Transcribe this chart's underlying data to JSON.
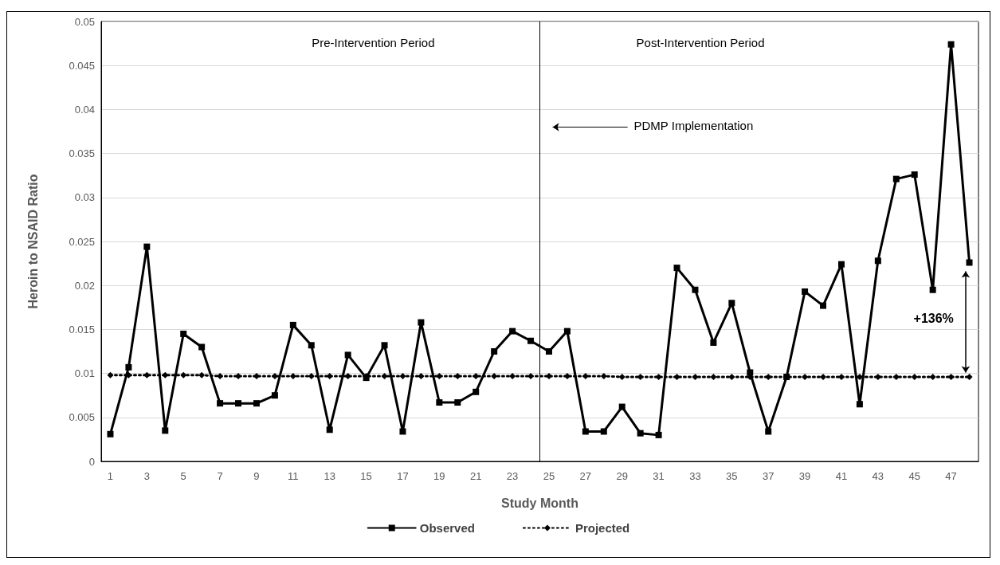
{
  "chart_data": {
    "type": "line",
    "xlabel": "Study Month",
    "ylabel": "Heroin to NSAID Ratio",
    "x": [
      1,
      2,
      3,
      4,
      5,
      6,
      7,
      8,
      9,
      10,
      11,
      12,
      13,
      14,
      15,
      16,
      17,
      18,
      19,
      20,
      21,
      22,
      23,
      24,
      25,
      26,
      27,
      28,
      29,
      30,
      31,
      32,
      33,
      34,
      35,
      36,
      37,
      38,
      39,
      40,
      41,
      42,
      43,
      44,
      45,
      46,
      47,
      48
    ],
    "series": [
      {
        "name": "Observed",
        "color": "#000000",
        "marker": "square",
        "line_style": "solid",
        "values": [
          0.0031,
          0.0107,
          0.0244,
          0.0035,
          0.0145,
          0.013,
          0.0066,
          0.0066,
          0.0066,
          0.0075,
          0.0155,
          0.0132,
          0.0036,
          0.0121,
          0.0095,
          0.0132,
          0.0034,
          0.0158,
          0.0067,
          0.0067,
          0.0079,
          0.0125,
          0.0148,
          0.0137,
          0.0125,
          0.0148,
          0.0034,
          0.0034,
          0.0062,
          0.0032,
          0.003,
          0.022,
          0.0195,
          0.0135,
          0.018,
          0.0101,
          0.0034,
          0.0096,
          0.0193,
          0.0177,
          0.0224,
          0.0065,
          0.0228,
          0.0321,
          0.0326,
          0.0195,
          0.0474,
          0.0226
        ]
      },
      {
        "name": "Projected",
        "color": "#000000",
        "marker": "diamond",
        "line_style": "dotted",
        "values": [
          0.0098,
          0.0098,
          0.0098,
          0.0098,
          0.0098,
          0.0098,
          0.0097,
          0.0097,
          0.0097,
          0.0097,
          0.0097,
          0.0097,
          0.0097,
          0.0097,
          0.0097,
          0.0097,
          0.0097,
          0.0097,
          0.0097,
          0.0097,
          0.0097,
          0.0097,
          0.0097,
          0.0097,
          0.0097,
          0.0097,
          0.0097,
          0.0097,
          0.0096,
          0.0096,
          0.0096,
          0.0096,
          0.0096,
          0.0096,
          0.0096,
          0.0096,
          0.0096,
          0.0096,
          0.0096,
          0.0096,
          0.0096,
          0.0096,
          0.0096,
          0.0096,
          0.0096,
          0.0096,
          0.0096,
          0.0096
        ]
      }
    ],
    "xlim": [
      0.5,
      48.5
    ],
    "xticks": [
      1,
      3,
      5,
      7,
      9,
      11,
      13,
      15,
      17,
      19,
      21,
      23,
      25,
      27,
      29,
      31,
      33,
      35,
      37,
      39,
      41,
      43,
      45,
      47
    ],
    "ylim": [
      0,
      0.05
    ],
    "yticks": [
      0,
      0.005,
      0.01,
      0.015,
      0.02,
      0.025,
      0.03,
      0.035,
      0.04,
      0.045,
      0.05
    ],
    "ref_lines": [
      {
        "axis": "x",
        "value": 24.5,
        "color": "#000000"
      }
    ],
    "annotations": [
      "Pre-Intervention Period",
      "Post-Intervention Period",
      "PDMP Implementation",
      "+136%"
    ],
    "grid": "y",
    "legend": "bottom"
  }
}
